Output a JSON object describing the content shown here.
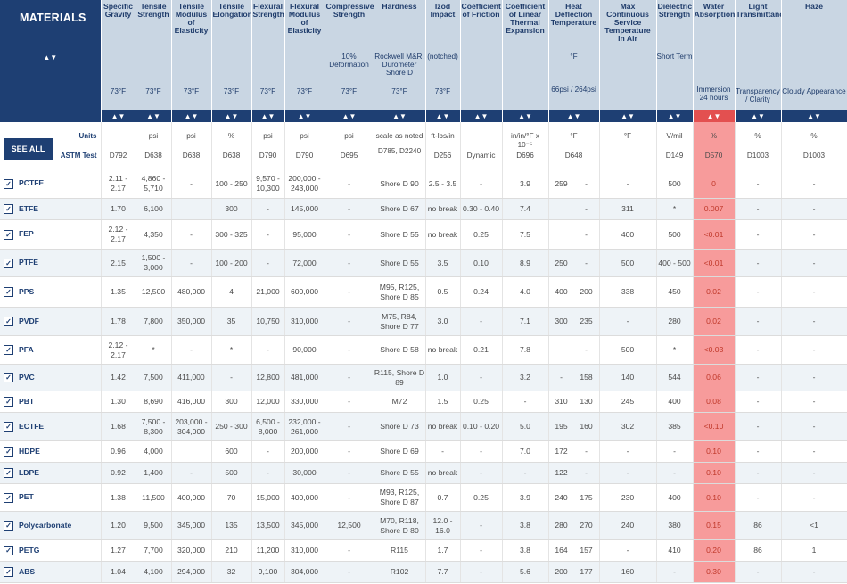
{
  "header": {
    "title": "MATERIALS",
    "sort_icon": "▲▼",
    "columns": [
      {
        "title": "Specific Gravity",
        "sub": "",
        "temp": "73°F"
      },
      {
        "title": "Tensile Strength",
        "sub": "",
        "temp": "73°F"
      },
      {
        "title": "Tensile Modulus of Elasticity",
        "sub": "",
        "temp": "73°F"
      },
      {
        "title": "Tensile Elongation",
        "sub": "",
        "temp": "73°F"
      },
      {
        "title": "Flexural Strength",
        "sub": "",
        "temp": "73°F"
      },
      {
        "title": "Flexural Modulus of Elasticity",
        "sub": "",
        "temp": "73°F"
      },
      {
        "title": "Compressive Strength",
        "sub": "10% Deformation",
        "temp": "73°F"
      },
      {
        "title": "Hardness",
        "sub": "Rockwell M&R, Durometer Shore D",
        "temp": "73°F"
      },
      {
        "title": "Izod Impact",
        "sub": "(notched)",
        "temp": "73°F"
      },
      {
        "title": "Coefficient of Friction",
        "sub": "",
        "temp": ""
      },
      {
        "title": "Coefficient of Linear Thermal Expansion",
        "sub": "",
        "temp": ""
      },
      {
        "title": "Heat Deflection Temperature",
        "sub": "°F",
        "temp": "66psi / 264psi"
      },
      {
        "title": "Max Continuous Service Temperature In Air",
        "sub": "",
        "temp": ""
      },
      {
        "title": "Dielectric Strength",
        "sub": "Short Term",
        "temp": ""
      },
      {
        "title": "Water Absorption",
        "sub": "",
        "temp": "Immersion 24 hours"
      },
      {
        "title": "Light Transmittance",
        "sub": "",
        "temp": "Transparency / Clarity"
      },
      {
        "title": "Haze",
        "sub": "",
        "temp": "Cloudy Appearance"
      }
    ]
  },
  "units_label": "Units",
  "astm_label": "ASTM Test",
  "see_all_label": "SEE ALL",
  "units": [
    "",
    "psi",
    "psi",
    "%",
    "psi",
    "psi",
    "psi",
    "scale as noted",
    "ft-lbs/in",
    "",
    "in/in/°F x 10⁻⁵",
    "°F",
    "°F",
    "V/mil",
    "%",
    "%",
    "%"
  ],
  "astm": [
    "D792",
    "D638",
    "D638",
    "D638",
    "D790",
    "D790",
    "D695",
    "D785, D2240",
    "D256",
    "Dynamic",
    "D696",
    "D648",
    "",
    "D149",
    "D570",
    "D1003",
    "D1003"
  ],
  "check_glyph": "✓",
  "rows": [
    {
      "name": "PCTFE",
      "cells": [
        "2.11 - 2.17",
        "4,860 - 5,710",
        "-",
        "100 - 250",
        "9,570 - 10,300",
        "200,000 - 243,000",
        "-",
        "Shore D 90",
        "2.5 - 3.5",
        "-",
        "3.9",
        [
          "259",
          "-"
        ],
        "-",
        "500",
        "0",
        "-",
        "-"
      ]
    },
    {
      "name": "ETFE",
      "cells": [
        "1.70",
        "6,100",
        "",
        "300",
        "-",
        "145,000",
        "-",
        "Shore D 67",
        "no break",
        "0.30 - 0.40",
        "7.4",
        [
          "",
          "-"
        ],
        "311",
        "*",
        "0.007",
        "-",
        "-"
      ]
    },
    {
      "name": "FEP",
      "cells": [
        "2.12 - 2.17",
        "4,350",
        "-",
        "300 - 325",
        "-",
        "95,000",
        "-",
        "Shore D 55",
        "no break",
        "0.25",
        "7.5",
        [
          "",
          "-"
        ],
        "400",
        "500",
        "<0.01",
        "-",
        "-"
      ]
    },
    {
      "name": "PTFE",
      "cells": [
        "2.15",
        "1,500 - 3,000",
        "-",
        "100 - 200",
        "-",
        "72,000",
        "-",
        "Shore D 55",
        "3.5",
        "0.10",
        "8.9",
        [
          "250",
          "-"
        ],
        "500",
        "400 - 500",
        "<0.01",
        "-",
        "-"
      ]
    },
    {
      "name": "PPS",
      "cells": [
        "1.35",
        "12,500",
        "480,000",
        "4",
        "21,000",
        "600,000",
        "-",
        "M95, R125, Shore D 85",
        "0.5",
        "0.24",
        "4.0",
        [
          "400",
          "200"
        ],
        "338",
        "450",
        "0.02",
        "-",
        "-"
      ]
    },
    {
      "name": "PVDF",
      "cells": [
        "1.78",
        "7,800",
        "350,000",
        "35",
        "10,750",
        "310,000",
        "-",
        "M75, R84, Shore D 77",
        "3.0",
        "-",
        "7.1",
        [
          "300",
          "235"
        ],
        "-",
        "280",
        "0.02",
        "-",
        "-"
      ]
    },
    {
      "name": "PFA",
      "cells": [
        "2.12 - 2.17",
        "*",
        "-",
        "*",
        "-",
        "90,000",
        "-",
        "Shore D 58",
        "no break",
        "0.21",
        "7.8",
        [
          "",
          "-"
        ],
        "500",
        "*",
        "<0.03",
        "-",
        "-"
      ]
    },
    {
      "name": "PVC",
      "cells": [
        "1.42",
        "7,500",
        "411,000",
        "-",
        "12,800",
        "481,000",
        "-",
        "R115, Shore D 89",
        "1.0",
        "-",
        "3.2",
        [
          "-",
          "158"
        ],
        "140",
        "544",
        "0.06",
        "-",
        "-"
      ]
    },
    {
      "name": "PBT",
      "cells": [
        "1.30",
        "8,690",
        "416,000",
        "300",
        "12,000",
        "330,000",
        "-",
        "M72",
        "1.5",
        "0.25",
        "-",
        [
          "310",
          "130"
        ],
        "245",
        "400",
        "0.08",
        "-",
        "-"
      ]
    },
    {
      "name": "ECTFE",
      "cells": [
        "1.68",
        "7,500 - 8,300",
        "203,000 - 304,000",
        "250 - 300",
        "6,500 - 8,000",
        "232,000 - 261,000",
        "-",
        "Shore D 73",
        "no break",
        "0.10 - 0.20",
        "5.0",
        [
          "195",
          "160"
        ],
        "302",
        "385",
        "<0.10",
        "-",
        "-"
      ]
    },
    {
      "name": "HDPE",
      "cells": [
        "0.96",
        "4,000",
        "",
        "600",
        "-",
        "200,000",
        "-",
        "Shore D 69",
        "-",
        "-",
        "7.0",
        [
          "172",
          "-"
        ],
        "-",
        "-",
        "0.10",
        "-",
        "-"
      ]
    },
    {
      "name": "LDPE",
      "cells": [
        "0.92",
        "1,400",
        "-",
        "500",
        "-",
        "30,000",
        "-",
        "Shore D 55",
        "no break",
        "-",
        "-",
        [
          "122",
          "-"
        ],
        "-",
        "-",
        "0.10",
        "-",
        "-"
      ]
    },
    {
      "name": "PET",
      "cells": [
        "1.38",
        "11,500",
        "400,000",
        "70",
        "15,000",
        "400,000",
        "-",
        "M93, R125, Shore D 87",
        "0.7",
        "0.25",
        "3.9",
        [
          "240",
          "175"
        ],
        "230",
        "400",
        "0.10",
        "-",
        "-"
      ]
    },
    {
      "name": "Polycarbonate",
      "cells": [
        "1.20",
        "9,500",
        "345,000",
        "135",
        "13,500",
        "345,000",
        "12,500",
        "M70, R118, Shore D 80",
        "12.0 - 16.0",
        "-",
        "3.8",
        [
          "280",
          "270"
        ],
        "240",
        "380",
        "0.15",
        "86",
        "<1"
      ]
    },
    {
      "name": "PETG",
      "cells": [
        "1.27",
        "7,700",
        "320,000",
        "210",
        "11,200",
        "310,000",
        "-",
        "R115",
        "1.7",
        "-",
        "3.8",
        [
          "164",
          "157"
        ],
        "-",
        "410",
        "0.20",
        "86",
        "1"
      ]
    },
    {
      "name": "ABS",
      "cells": [
        "1.04",
        "4,100",
        "294,000",
        "32",
        "9,100",
        "304,000",
        "-",
        "R102",
        "7.7",
        "-",
        "5.6",
        [
          "200",
          "177"
        ],
        "160",
        "-",
        "0.30",
        "-",
        "-"
      ]
    }
  ],
  "colors": {
    "navy": "#1e3f73",
    "header_bg": "#c9d6e3",
    "highlight": "#f79b9b",
    "highlight_header": "#e35050"
  }
}
